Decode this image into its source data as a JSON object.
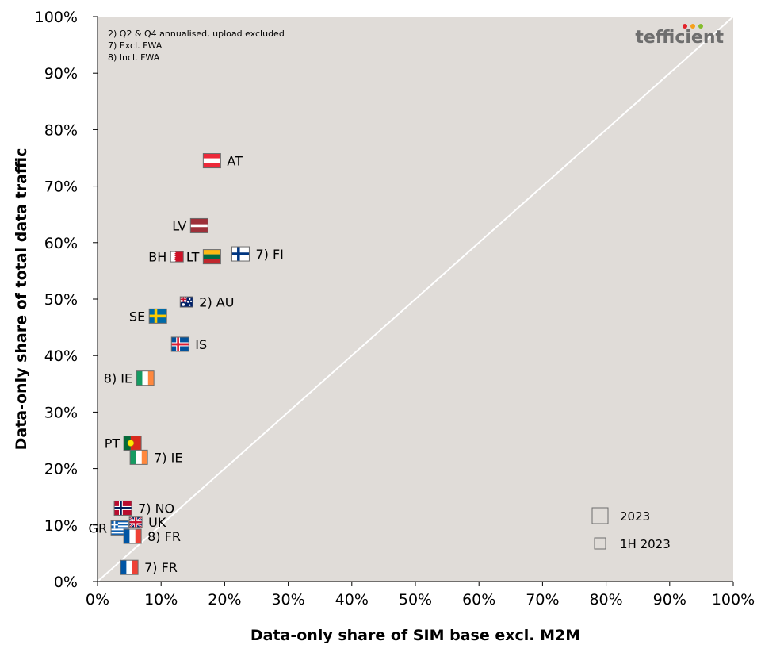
{
  "chart_data": {
    "type": "scatter",
    "xlabel": "Data-only share of SIM base excl. M2M",
    "ylabel": "Data-only share of total data traffic",
    "xlim": [
      0,
      100
    ],
    "ylim": [
      0,
      100
    ],
    "x_ticks": [
      "0%",
      "10%",
      "20%",
      "30%",
      "40%",
      "50%",
      "60%",
      "70%",
      "80%",
      "90%",
      "100%"
    ],
    "y_ticks": [
      "0%",
      "10%",
      "20%",
      "30%",
      "40%",
      "50%",
      "60%",
      "70%",
      "80%",
      "90%",
      "100%"
    ],
    "diagonal": true,
    "grid": false,
    "colors": {
      "plot_bg": "#e0dcd8",
      "diagonal": "#ffffff"
    },
    "notes": [
      "2) Q2 & Q4 annualised, upload excluded",
      "7) Excl. FWA",
      "8) Incl. FWA"
    ],
    "legend": {
      "placement": "bottom-right",
      "entries": [
        {
          "label": "2023",
          "size": "large"
        },
        {
          "label": "1H 2023",
          "size": "small"
        }
      ]
    },
    "logo": "tefficient",
    "points": [
      {
        "label": "AT",
        "x": 18,
        "y": 74.5,
        "flag": "AT",
        "label_side": "right",
        "period": "2023"
      },
      {
        "label": "LV",
        "x": 16,
        "y": 63,
        "flag": "LV",
        "label_side": "left",
        "period": "2023"
      },
      {
        "label": "7) FI",
        "x": 22.5,
        "y": 58,
        "flag": "FI",
        "label_side": "right",
        "period": "2023"
      },
      {
        "label": "LT",
        "x": 18,
        "y": 57.5,
        "flag": "LT",
        "label_side": "left",
        "period": "2023"
      },
      {
        "label": "BH",
        "x": 12.5,
        "y": 57.5,
        "flag": "BH",
        "label_side": "left",
        "period": "1H 2023"
      },
      {
        "label": "2) AU",
        "x": 14,
        "y": 49.5,
        "flag": "AU",
        "label_side": "right",
        "period": "1H 2023"
      },
      {
        "label": "SE",
        "x": 9.5,
        "y": 47,
        "flag": "SE",
        "label_side": "left",
        "period": "2023"
      },
      {
        "label": "IS",
        "x": 13,
        "y": 42,
        "flag": "IS",
        "label_side": "right",
        "period": "2023"
      },
      {
        "label": "8) IE",
        "x": 7.5,
        "y": 36,
        "flag": "IE",
        "label_side": "left",
        "period": "2023"
      },
      {
        "label": "PT",
        "x": 5.5,
        "y": 24.5,
        "flag": "PT",
        "label_side": "left",
        "period": "2023"
      },
      {
        "label": "7) IE",
        "x": 6.5,
        "y": 22,
        "flag": "IE",
        "label_side": "right",
        "period": "2023"
      },
      {
        "label": "7) NO",
        "x": 4,
        "y": 13,
        "flag": "NO",
        "label_side": "right",
        "period": "2023"
      },
      {
        "label": "UK",
        "x": 6,
        "y": 10.5,
        "flag": "UK",
        "label_side": "right",
        "period": "1H 2023"
      },
      {
        "label": "GR",
        "x": 3.5,
        "y": 9.5,
        "flag": "GR",
        "label_side": "left",
        "period": "2023"
      },
      {
        "label": "8) FR",
        "x": 5.5,
        "y": 8,
        "flag": "FR",
        "label_side": "right",
        "period": "2023"
      },
      {
        "label": "7) FR",
        "x": 5,
        "y": 2.5,
        "flag": "FR",
        "label_side": "right",
        "period": "2023"
      }
    ]
  }
}
